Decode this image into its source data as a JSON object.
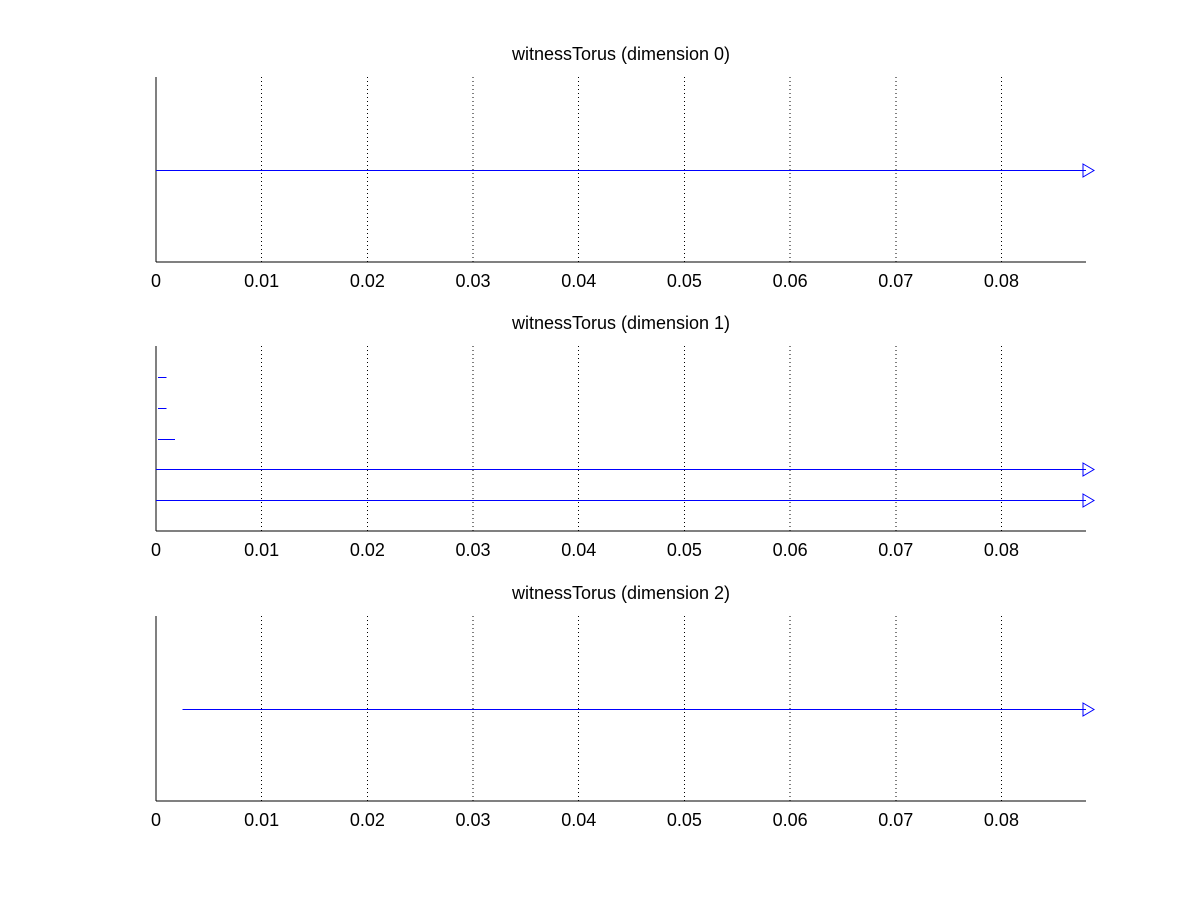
{
  "figure": {
    "background": "#ffffff",
    "series_color": "#0000ff"
  },
  "chart_data": [
    {
      "type": "barcode",
      "title": "witnessTorus (dimension 0)",
      "xlim": [
        0,
        0.088
      ],
      "xticks": [
        0,
        0.01,
        0.02,
        0.03,
        0.04,
        0.05,
        0.06,
        0.07,
        0.08
      ],
      "xtick_labels": [
        "0",
        "0.01",
        "0.02",
        "0.03",
        "0.04",
        "0.05",
        "0.06",
        "0.07",
        "0.08"
      ],
      "grid": "x-dotted",
      "slots": 1,
      "intervals": [
        {
          "birth": 0,
          "death": null,
          "infinite": true
        }
      ]
    },
    {
      "type": "barcode",
      "title": "witnessTorus (dimension 1)",
      "xlim": [
        0,
        0.088
      ],
      "xticks": [
        0,
        0.01,
        0.02,
        0.03,
        0.04,
        0.05,
        0.06,
        0.07,
        0.08
      ],
      "xtick_labels": [
        "0",
        "0.01",
        "0.02",
        "0.03",
        "0.04",
        "0.05",
        "0.06",
        "0.07",
        "0.08"
      ],
      "grid": "x-dotted",
      "slots": 5,
      "intervals": [
        {
          "birth": 0.0002,
          "death": 0.001,
          "infinite": false
        },
        {
          "birth": 0.0002,
          "death": 0.001,
          "infinite": false
        },
        {
          "birth": 0.0002,
          "death": 0.0018,
          "infinite": false
        },
        {
          "birth": 0,
          "death": null,
          "infinite": true
        },
        {
          "birth": 0,
          "death": null,
          "infinite": true
        }
      ]
    },
    {
      "type": "barcode",
      "title": "witnessTorus (dimension 2)",
      "xlim": [
        0,
        0.088
      ],
      "xticks": [
        0,
        0.01,
        0.02,
        0.03,
        0.04,
        0.05,
        0.06,
        0.07,
        0.08
      ],
      "xtick_labels": [
        "0",
        "0.01",
        "0.02",
        "0.03",
        "0.04",
        "0.05",
        "0.06",
        "0.07",
        "0.08"
      ],
      "grid": "x-dotted",
      "slots": 1,
      "intervals": [
        {
          "birth": 0.0025,
          "death": null,
          "infinite": true
        }
      ]
    }
  ]
}
